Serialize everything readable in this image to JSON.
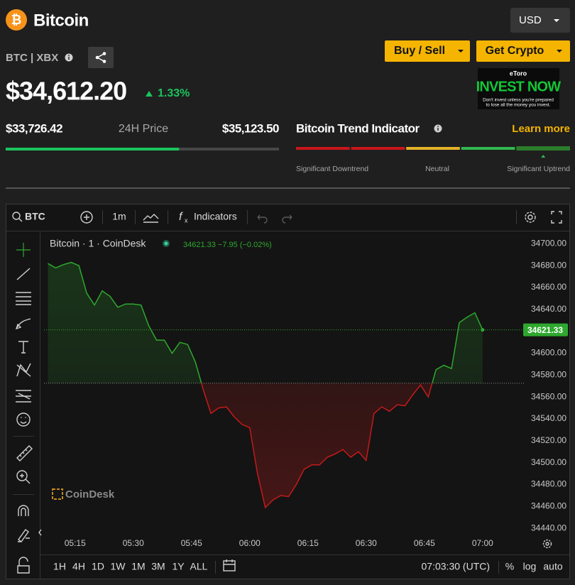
{
  "header": {
    "title": "Bitcoin",
    "currency": "USD",
    "pair": "BTC | XBX"
  },
  "actions": [
    "Buy / Sell",
    "Get Crypto"
  ],
  "ad": {
    "brand": "eToro",
    "headline": "INVEST NOW",
    "disclaimer": [
      "Don't invest unless you're prepared",
      "to lose all the money you invest."
    ]
  },
  "price": {
    "value": 34612.2,
    "label": "$34,612.20",
    "change": "1.33%"
  },
  "range": {
    "low": {
      "value": 33726.42,
      "label": "$33,726.42"
    },
    "label": "24H Price",
    "high": {
      "value": 35123.5,
      "label": "$35,123.50"
    }
  },
  "trend": {
    "title": "Bitcoin Trend Indicator",
    "link": "Learn more",
    "colors": [
      "#c8161b",
      "#c8161b",
      "#e2b227",
      "#2fb84f",
      "#2b7d2b"
    ],
    "level": 4,
    "labels": [
      "Significant Downtrend",
      "Neutral",
      "Significant Uptrend"
    ]
  },
  "toolbar": {
    "symbol": "BTC",
    "interval": "1m",
    "indicators": "Indicators"
  },
  "chart_data": {
    "type": "line",
    "title": "Bitcoin · 1 · CoinDesk",
    "quote": "34621.33 −7.95 (−0.02%)",
    "watermark": "CoinDesk",
    "colors": {
      "up": "#2ea82e",
      "down": "#c41a1a"
    },
    "baseline": 34572.6,
    "x": [
      "05:08",
      "05:10",
      "05:12",
      "05:14",
      "05:16",
      "05:18",
      "05:20",
      "05:22",
      "05:24",
      "05:26",
      "05:28",
      "05:30",
      "05:32",
      "05:34",
      "05:36",
      "05:38",
      "05:40",
      "05:42",
      "05:44",
      "05:46",
      "05:48",
      "05:50",
      "05:52",
      "05:54",
      "05:56",
      "05:58",
      "06:00",
      "06:02",
      "06:04",
      "06:06",
      "06:08",
      "06:10",
      "06:12",
      "06:14",
      "06:16",
      "06:18",
      "06:20",
      "06:22",
      "06:24",
      "06:26",
      "06:28",
      "06:30",
      "06:32",
      "06:34",
      "06:36",
      "06:38",
      "06:40",
      "06:42",
      "06:44",
      "06:46",
      "06:48",
      "06:50",
      "06:52",
      "06:54",
      "06:56",
      "06:58",
      "07:00"
    ],
    "values": [
      34682,
      34678,
      34681,
      34683,
      34680,
      34655,
      34644,
      34657,
      34652,
      34642,
      34645,
      34645,
      34644,
      34625,
      34612,
      34612,
      34600,
      34610,
      34608,
      34592,
      34567,
      34545,
      34550,
      34551,
      34542,
      34535,
      34532,
      34490,
      34459,
      34466,
      34470,
      34469,
      34480,
      34494,
      34498,
      34498,
      34505,
      34508,
      34512,
      34505,
      34510,
      34502,
      34545,
      34551,
      34547,
      34553,
      34552,
      34562,
      34571,
      34560,
      34585,
      34589,
      34586,
      34628,
      34633,
      34637,
      34621.33
    ],
    "xlim": [
      "05:07",
      "07:11"
    ],
    "xticks": [
      "05:15",
      "05:30",
      "05:45",
      "06:00",
      "06:15",
      "06:30",
      "06:45",
      "07:00"
    ],
    "ylim": [
      34433,
      34710
    ],
    "yticks": [
      {
        "value": 34440,
        "label": "34440.00"
      },
      {
        "value": 34460,
        "label": "34460.00"
      },
      {
        "value": 34480,
        "label": "34480.00"
      },
      {
        "value": 34500,
        "label": "34500.00"
      },
      {
        "value": 34520,
        "label": "34520.00"
      },
      {
        "value": 34540,
        "label": "34540.00"
      },
      {
        "value": 34560,
        "label": "34560.00"
      },
      {
        "value": 34580,
        "label": "34580.00"
      },
      {
        "value": 34600,
        "label": "34600.00"
      },
      {
        "value": 34620,
        "label": "34620.00"
      },
      {
        "value": 34640,
        "label": "34640.00"
      },
      {
        "value": 34660,
        "label": "34660.00"
      },
      {
        "value": 34680,
        "label": "34680.00"
      },
      {
        "value": 34700,
        "label": "34700.00"
      }
    ],
    "grid": false
  },
  "footer": {
    "ranges": [
      "1H",
      "4H",
      "1D",
      "1W",
      "1M",
      "3M",
      "1Y",
      "ALL"
    ],
    "clock": "07:03:30 (UTC)",
    "options": [
      "%",
      "log",
      "auto"
    ]
  }
}
